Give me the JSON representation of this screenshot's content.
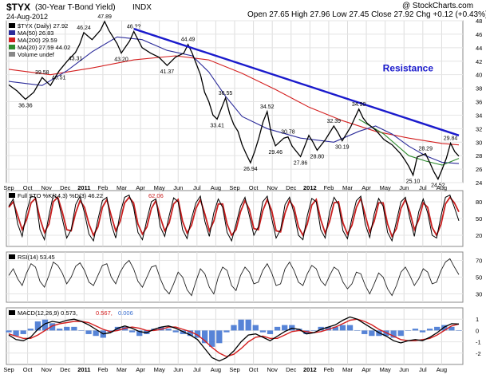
{
  "header": {
    "symbol": "$TYX",
    "description": "(30-Year T-Bond Yield)",
    "exchange": "INDX",
    "date": "24-Aug-2012",
    "quote": "Open 27.65  High 27.96  Low 27.45  Close 27.92  Chg +0.12 (+0.43%)",
    "watermark": "@ StockCharts.com"
  },
  "colors": {
    "price": "#000000",
    "ma50": "#2b2b9a",
    "ma200": "#d42020",
    "ma20": "#2e8b2e",
    "resistance": "#1a1acc",
    "sto_k": "#000000",
    "sto_d": "#c81e1e",
    "macd": "#000000",
    "signal": "#d42020",
    "histogram": "#3a6fd0"
  },
  "chart_data": [
    {
      "type": "line",
      "panel": "price",
      "legend": [
        {
          "label": "$TYX (Daily) 27.92",
          "color": "#000000"
        },
        {
          "label": "MA(50) 26.83",
          "color": "#2b2b9a"
        },
        {
          "label": "MA(200) 29.59",
          "color": "#d42020"
        },
        {
          "label": "MA(20) 27.59 44.02",
          "color": "#2e8b2e"
        },
        {
          "label": "Volume undef",
          "color": "#888888"
        }
      ],
      "annotation": "Resistance",
      "ylim": [
        24,
        48
      ],
      "yticks": [
        24,
        26,
        28,
        30,
        32,
        34,
        36,
        38,
        40,
        42,
        44,
        46,
        48
      ],
      "x_labels": [
        "Sep",
        "Oct",
        "Nov",
        "Dec",
        "2011",
        "Feb",
        "Mar",
        "Apr",
        "May",
        "Jun",
        "Jul",
        "Aug",
        "Sep",
        "Oct",
        "Nov",
        "Dec",
        "2012",
        "Feb",
        "Mar",
        "Apr",
        "May",
        "Jun",
        "Jul",
        "Aug"
      ],
      "price_points": [
        [
          0,
          38.5
        ],
        [
          2,
          37.6
        ],
        [
          4,
          36.36
        ],
        [
          6,
          37.4
        ],
        [
          8,
          39.58
        ],
        [
          10,
          38.4
        ],
        [
          12,
          40.51
        ],
        [
          14,
          42.0
        ],
        [
          16,
          43.31
        ],
        [
          17,
          44.5
        ],
        [
          18,
          46.24
        ],
        [
          20,
          45.2
        ],
        [
          22,
          46.6
        ],
        [
          23,
          47.89
        ],
        [
          24,
          46.6
        ],
        [
          26,
          44.6
        ],
        [
          27,
          43.2
        ],
        [
          29,
          45.0
        ],
        [
          30,
          46.4
        ],
        [
          31,
          45.2
        ],
        [
          32,
          44.0
        ],
        [
          34,
          43.2
        ],
        [
          36,
          42.6
        ],
        [
          38,
          41.37
        ],
        [
          40,
          42.6
        ],
        [
          42,
          43.2
        ],
        [
          43,
          44.49
        ],
        [
          44,
          43.2
        ],
        [
          45,
          41.6
        ],
        [
          46,
          40.0
        ],
        [
          47,
          37.4
        ],
        [
          48,
          36.0
        ],
        [
          49,
          34.0
        ],
        [
          50,
          33.41
        ],
        [
          52,
          36.55
        ],
        [
          53,
          34.2
        ],
        [
          54,
          32.6
        ],
        [
          55,
          31.6
        ],
        [
          56,
          29.6
        ],
        [
          57,
          28.2
        ],
        [
          58,
          26.94
        ],
        [
          59,
          28.6
        ],
        [
          60,
          30.6
        ],
        [
          61,
          33.0
        ],
        [
          62,
          34.52
        ],
        [
          63,
          31.2
        ],
        [
          64,
          29.46
        ],
        [
          66,
          30.6
        ],
        [
          67,
          30.78
        ],
        [
          68,
          29.4
        ],
        [
          70,
          27.86
        ],
        [
          71,
          29.4
        ],
        [
          72,
          31.0
        ],
        [
          73,
          30.0
        ],
        [
          74,
          28.8
        ],
        [
          76,
          30.4
        ],
        [
          78,
          32.39
        ],
        [
          79,
          31.4
        ],
        [
          80,
          30.19
        ],
        [
          82,
          32.2
        ],
        [
          84,
          34.9
        ],
        [
          85,
          33.6
        ],
        [
          86,
          32.8
        ],
        [
          88,
          31.8
        ],
        [
          90,
          30.4
        ],
        [
          92,
          29.6
        ],
        [
          94,
          28.29
        ],
        [
          95,
          27.4
        ],
        [
          96,
          26.4
        ],
        [
          97,
          25.1
        ],
        [
          98,
          27.8
        ],
        [
          100,
          28.29
        ],
        [
          101,
          27.0
        ],
        [
          102,
          25.6
        ],
        [
          103,
          24.52
        ],
        [
          104,
          26.0
        ],
        [
          105,
          27.6
        ],
        [
          106,
          29.84
        ],
        [
          107,
          28.6
        ],
        [
          108,
          27.92
        ]
      ],
      "ma50_points": [
        [
          0,
          39.0
        ],
        [
          8,
          38.4
        ],
        [
          14,
          40.6
        ],
        [
          20,
          43.4
        ],
        [
          26,
          45.6
        ],
        [
          32,
          45.2
        ],
        [
          38,
          43.6
        ],
        [
          44,
          42.8
        ],
        [
          48,
          40.4
        ],
        [
          52,
          36.8
        ],
        [
          56,
          33.8
        ],
        [
          62,
          32.0
        ],
        [
          70,
          30.6
        ],
        [
          78,
          30.0
        ],
        [
          84,
          31.6
        ],
        [
          88,
          32.4
        ],
        [
          92,
          31.2
        ],
        [
          96,
          29.4
        ],
        [
          100,
          28.0
        ],
        [
          104,
          27.0
        ],
        [
          108,
          26.83
        ]
      ],
      "ma200_points": [
        [
          0,
          40.8
        ],
        [
          10,
          40.0
        ],
        [
          20,
          41.0
        ],
        [
          30,
          42.2
        ],
        [
          40,
          42.8
        ],
        [
          48,
          42.2
        ],
        [
          56,
          40.2
        ],
        [
          64,
          37.8
        ],
        [
          72,
          35.2
        ],
        [
          80,
          33.2
        ],
        [
          88,
          31.6
        ],
        [
          96,
          30.6
        ],
        [
          104,
          29.8
        ],
        [
          108,
          29.59
        ]
      ],
      "ma20_points": [
        [
          84,
          33.4
        ],
        [
          90,
          31.2
        ],
        [
          96,
          28.0
        ],
        [
          100,
          27.2
        ],
        [
          104,
          26.6
        ],
        [
          108,
          27.59
        ]
      ],
      "labels": [
        {
          "i": 4,
          "v": 36.36,
          "text": "36.36",
          "pos": "below"
        },
        {
          "i": 8,
          "v": 39.58,
          "text": "39.58",
          "pos": "above"
        },
        {
          "i": 12,
          "v": 40.51,
          "text": "40.51",
          "pos": "below"
        },
        {
          "i": 16,
          "v": 43.31,
          "text": "43.31",
          "pos": "below"
        },
        {
          "i": 18,
          "v": 46.24,
          "text": "46.24",
          "pos": "above"
        },
        {
          "i": 23,
          "v": 47.89,
          "text": "47.89",
          "pos": "above"
        },
        {
          "i": 27,
          "v": 43.2,
          "text": "43.20",
          "pos": "below"
        },
        {
          "i": 30,
          "v": 46.4,
          "text": "46.??",
          "pos": "above"
        },
        {
          "i": 38,
          "v": 41.37,
          "text": "41.37",
          "pos": "below"
        },
        {
          "i": 43,
          "v": 44.49,
          "text": "44.49",
          "pos": "above"
        },
        {
          "i": 50,
          "v": 33.41,
          "text": "33.41",
          "pos": "below"
        },
        {
          "i": 52,
          "v": 36.55,
          "text": "36.55",
          "pos": "above"
        },
        {
          "i": 58,
          "v": 26.94,
          "text": "26.94",
          "pos": "below"
        },
        {
          "i": 62,
          "v": 34.52,
          "text": "34.52",
          "pos": "above"
        },
        {
          "i": 64,
          "v": 29.46,
          "text": "29.46",
          "pos": "below"
        },
        {
          "i": 67,
          "v": 30.78,
          "text": "30.78",
          "pos": "above"
        },
        {
          "i": 70,
          "v": 27.86,
          "text": "27.86",
          "pos": "below"
        },
        {
          "i": 74,
          "v": 28.8,
          "text": "28.80",
          "pos": "below"
        },
        {
          "i": 78,
          "v": 32.39,
          "text": "32.39",
          "pos": "above"
        },
        {
          "i": 80,
          "v": 30.19,
          "text": "30.19",
          "pos": "below"
        },
        {
          "i": 84,
          "v": 34.9,
          "text": "34.90",
          "pos": "above"
        },
        {
          "i": 97,
          "v": 25.1,
          "text": "25.10",
          "pos": "below"
        },
        {
          "i": 100,
          "v": 28.29,
          "text": "28.29",
          "pos": "above"
        },
        {
          "i": 103,
          "v": 24.52,
          "text": "24.52",
          "pos": "below"
        },
        {
          "i": 106,
          "v": 29.84,
          "text": "29.84",
          "pos": "above"
        }
      ],
      "resistance_line": [
        [
          30,
          46.8
        ],
        [
          108,
          31.0
        ]
      ]
    },
    {
      "type": "line",
      "panel": "stochastic",
      "legend": [
        {
          "label": "Full STO %K(14,3) %D(3) 46.22",
          "color": "#000000"
        },
        {
          "label": "62.06",
          "color": "#c81e1e"
        }
      ],
      "ylim": [
        0,
        100
      ],
      "yticks": [
        20,
        50,
        80
      ],
      "k_values": [
        72,
        85,
        40,
        18,
        62,
        90,
        88,
        30,
        12,
        55,
        92,
        86,
        50,
        15,
        30,
        75,
        90,
        60,
        22,
        10,
        48,
        82,
        88,
        40,
        15,
        60,
        88,
        92,
        70,
        25,
        12,
        48,
        80,
        85,
        35,
        18,
        55,
        87,
        80,
        30,
        14,
        50,
        78,
        90,
        45,
        18,
        60,
        85,
        70,
        25,
        10,
        40,
        72,
        88,
        55,
        20,
        35,
        80,
        90,
        50,
        15,
        30,
        75,
        88,
        60,
        20,
        12,
        55,
        86,
        80,
        30,
        15,
        62,
        88,
        75,
        28,
        14,
        50,
        82,
        90,
        40,
        16,
        58,
        86,
        72,
        25,
        10,
        45,
        80,
        88,
        50,
        18,
        62,
        85,
        60,
        20,
        15,
        55,
        88,
        92,
        70,
        46
      ],
      "d_values": [
        70,
        80,
        55,
        30,
        48,
        78,
        86,
        50,
        25,
        40,
        80,
        88,
        62,
        30,
        28,
        60,
        82,
        70,
        40,
        20,
        35,
        70,
        84,
        55,
        28,
        45,
        78,
        88,
        78,
        40,
        22,
        35,
        68,
        82,
        52,
        28,
        42,
        76,
        84,
        45,
        24,
        38,
        68,
        84,
        58,
        28,
        45,
        76,
        76,
        40,
        20,
        30,
        62,
        82,
        66,
        32,
        30,
        64,
        84,
        64,
        28,
        26,
        60,
        82,
        70,
        35,
        20,
        40,
        74,
        84,
        48,
        24,
        45,
        78,
        80,
        42,
        22,
        38,
        70,
        86,
        56,
        26,
        45,
        78,
        78,
        40,
        18,
        32,
        68,
        84,
        62,
        30,
        48,
        78,
        70,
        34,
        20,
        40,
        76,
        88,
        78,
        62
      ]
    },
    {
      "type": "line",
      "panel": "rsi",
      "legend": [
        {
          "label": "RSI(14) 53.45",
          "color": "#000000"
        }
      ],
      "ylim": [
        20,
        80
      ],
      "yticks": [
        30,
        50,
        70
      ],
      "values": [
        52,
        60,
        48,
        40,
        55,
        66,
        62,
        45,
        38,
        52,
        68,
        64,
        55,
        42,
        50,
        63,
        67,
        58,
        44,
        40,
        52,
        64,
        66,
        50,
        42,
        56,
        65,
        70,
        60,
        45,
        38,
        50,
        62,
        64,
        48,
        36,
        30,
        42,
        56,
        50,
        35,
        28,
        45,
        60,
        54,
        38,
        30,
        50,
        62,
        58,
        40,
        34,
        52,
        62,
        56,
        42,
        44,
        58,
        66,
        55,
        40,
        42,
        60,
        68,
        58,
        44,
        40,
        54,
        64,
        60,
        46,
        40,
        52,
        62,
        58,
        44,
        36,
        42,
        56,
        54,
        40,
        30,
        42,
        55,
        50,
        36,
        28,
        40,
        56,
        62,
        52,
        40,
        48,
        60,
        56,
        42,
        44,
        58,
        68,
        72,
        62,
        53
      ]
    },
    {
      "type": "bar",
      "panel": "macd",
      "legend": [
        {
          "label": "MACD(12,26,9) 0.573,",
          "color": "#000000"
        },
        {
          "label": "0.567,",
          "color": "#d42020"
        },
        {
          "label": "0.006",
          "color": "#3a6fd0"
        }
      ],
      "ylim": [
        -3,
        2
      ],
      "yticks": [
        -2,
        -1,
        0,
        1
      ],
      "macd_values": [
        -0.4,
        -0.8,
        -0.9,
        -0.6,
        0.1,
        0.6,
        0.8,
        0.7,
        0.9,
        1.0,
        0.8,
        0.5,
        0.1,
        -0.3,
        -0.2,
        0.2,
        0.4,
        0.2,
        -0.1,
        -0.2,
        0.1,
        0.3,
        0.4,
        0.2,
        -0.1,
        -0.4,
        -0.8,
        -1.6,
        -2.4,
        -2.7,
        -2.4,
        -1.8,
        -1.0,
        -0.4,
        -0.3,
        -0.6,
        -0.9,
        -0.5,
        -0.1,
        0.2,
        0.1,
        -0.3,
        -0.2,
        0.1,
        0.3,
        0.5,
        0.9,
        1.2,
        1.0,
        0.6,
        0.2,
        -0.2,
        -0.5,
        -0.9,
        -1.1,
        -0.9,
        -0.8,
        -0.9,
        -0.6,
        -0.2,
        0.3,
        0.6,
        0.57
      ],
      "signal_values": [
        -0.3,
        -0.5,
        -0.7,
        -0.7,
        -0.4,
        0.0,
        0.4,
        0.6,
        0.7,
        0.8,
        0.8,
        0.7,
        0.4,
        0.1,
        -0.1,
        0.0,
        0.2,
        0.3,
        0.2,
        0.0,
        0.0,
        0.1,
        0.3,
        0.3,
        0.1,
        -0.1,
        -0.4,
        -0.9,
        -1.5,
        -2.0,
        -2.3,
        -2.1,
        -1.6,
        -1.0,
        -0.6,
        -0.5,
        -0.7,
        -0.7,
        -0.4,
        -0.1,
        0.0,
        -0.1,
        -0.2,
        -0.1,
        0.1,
        0.3,
        0.6,
        0.9,
        1.0,
        0.8,
        0.5,
        0.1,
        -0.2,
        -0.5,
        -0.8,
        -0.9,
        -0.9,
        -0.8,
        -0.7,
        -0.4,
        0.0,
        0.4,
        0.567
      ]
    }
  ]
}
